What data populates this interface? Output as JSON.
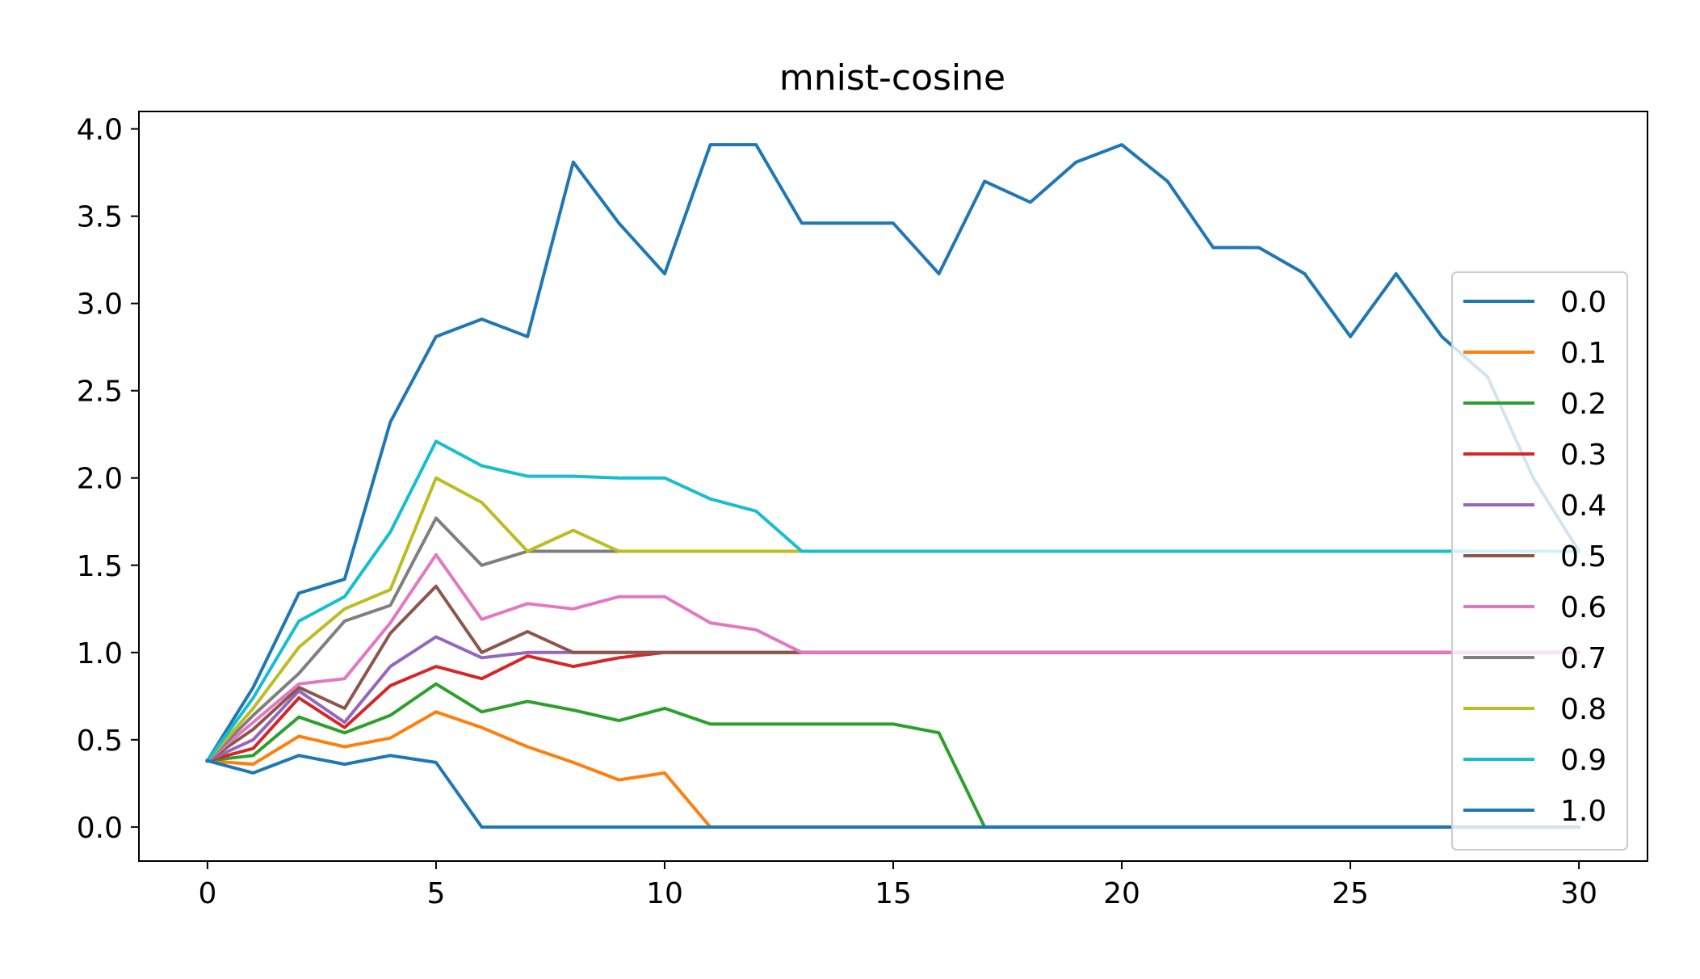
{
  "chart_data": {
    "type": "line",
    "title": "mnist-cosine",
    "xlabel": "",
    "ylabel": "",
    "xlim": [
      -1.5,
      31.5
    ],
    "ylim": [
      -0.195,
      4.1
    ],
    "xticks": [
      0,
      5,
      10,
      15,
      20,
      25,
      30
    ],
    "xtick_labels": [
      "0",
      "5",
      "10",
      "15",
      "20",
      "25",
      "30"
    ],
    "yticks": [
      0.0,
      0.5,
      1.0,
      1.5,
      2.0,
      2.5,
      3.0,
      3.5,
      4.0
    ],
    "ytick_labels": [
      "0.0",
      "0.5",
      "1.0",
      "1.5",
      "2.0",
      "2.5",
      "3.0",
      "3.5",
      "4.0"
    ],
    "grid": false,
    "legend_position": "right",
    "legend_title": "",
    "x": [
      0,
      1,
      2,
      3,
      4,
      5,
      6,
      7,
      8,
      9,
      10,
      11,
      12,
      13,
      14,
      15,
      16,
      17,
      18,
      19,
      20,
      21,
      22,
      23,
      24,
      25,
      26,
      27,
      28,
      29,
      30
    ],
    "series": [
      {
        "name": "0.0",
        "color": "#1f77b4",
        "values": [
          0.38,
          0.8,
          1.34,
          1.42,
          2.32,
          2.81,
          2.91,
          2.81,
          3.81,
          3.46,
          3.17,
          3.91,
          3.91,
          3.46,
          3.46,
          3.46,
          3.17,
          3.7,
          3.58,
          3.81,
          3.91,
          3.7,
          3.32,
          3.32,
          3.17,
          2.81,
          3.17,
          2.81,
          2.58,
          2.0,
          1.58
        ]
      },
      {
        "name": "0.1",
        "color": "#ff7f0e",
        "values": [
          0.38,
          0.36,
          0.52,
          0.46,
          0.51,
          0.66,
          0.57,
          0.46,
          0.37,
          0.27,
          0.31,
          0.0,
          0.0,
          0.0,
          0.0,
          0.0,
          0.0,
          0.0,
          0.0,
          0.0,
          0.0,
          0.0,
          0.0,
          0.0,
          0.0,
          0.0,
          0.0,
          0.0,
          0.0,
          0.0,
          0.0
        ]
      },
      {
        "name": "0.2",
        "color": "#2ca02c",
        "values": [
          0.38,
          0.41,
          0.63,
          0.54,
          0.64,
          0.82,
          0.66,
          0.72,
          0.67,
          0.61,
          0.68,
          0.59,
          0.59,
          0.59,
          0.59,
          0.59,
          0.54,
          0.0,
          0.0,
          0.0,
          0.0,
          0.0,
          0.0,
          0.0,
          0.0,
          0.0,
          0.0,
          0.0,
          0.0,
          0.0,
          0.0
        ]
      },
      {
        "name": "0.3",
        "color": "#d62728",
        "values": [
          0.38,
          0.45,
          0.74,
          0.57,
          0.81,
          0.92,
          0.85,
          0.98,
          0.92,
          0.97,
          1.0,
          1.0,
          1.0,
          1.0,
          1.0,
          1.0,
          1.0,
          1.0,
          1.0,
          1.0,
          1.0,
          1.0,
          1.0,
          1.0,
          1.0,
          1.0,
          1.0,
          1.0,
          1.0,
          1.0,
          1.0
        ]
      },
      {
        "name": "0.4",
        "color": "#9467bd",
        "values": [
          0.38,
          0.5,
          0.78,
          0.6,
          0.92,
          1.09,
          0.97,
          1.0,
          1.0,
          1.0,
          1.0,
          1.0,
          1.0,
          1.0,
          1.0,
          1.0,
          1.0,
          1.0,
          1.0,
          1.0,
          1.0,
          1.0,
          1.0,
          1.0,
          1.0,
          1.0,
          1.0,
          1.0,
          1.0,
          1.0,
          1.0
        ]
      },
      {
        "name": "0.5",
        "color": "#8c564b",
        "values": [
          0.38,
          0.56,
          0.8,
          0.68,
          1.11,
          1.38,
          1.0,
          1.12,
          1.0,
          1.0,
          1.0,
          1.0,
          1.0,
          1.0,
          1.0,
          1.0,
          1.0,
          1.0,
          1.0,
          1.0,
          1.0,
          1.0,
          1.0,
          1.0,
          1.0,
          1.0,
          1.0,
          1.0,
          1.0,
          1.0,
          1.0
        ]
      },
      {
        "name": "0.6",
        "color": "#e377c2",
        "values": [
          0.38,
          0.6,
          0.82,
          0.85,
          1.17,
          1.56,
          1.19,
          1.28,
          1.25,
          1.32,
          1.32,
          1.17,
          1.13,
          1.0,
          1.0,
          1.0,
          1.0,
          1.0,
          1.0,
          1.0,
          1.0,
          1.0,
          1.0,
          1.0,
          1.0,
          1.0,
          1.0,
          1.0,
          1.0,
          1.0,
          1.0
        ]
      },
      {
        "name": "0.7",
        "color": "#7f7f7f",
        "values": [
          0.38,
          0.64,
          0.88,
          1.18,
          1.27,
          1.77,
          1.5,
          1.58,
          1.58,
          1.58,
          1.58,
          1.58,
          1.58,
          1.58,
          1.58,
          1.58,
          1.58,
          1.58,
          1.58,
          1.58,
          1.58,
          1.58,
          1.58,
          1.58,
          1.58,
          1.58,
          1.58,
          1.58,
          1.58,
          1.58,
          1.58
        ]
      },
      {
        "name": "0.8",
        "color": "#bcbd22",
        "values": [
          0.38,
          0.68,
          1.03,
          1.25,
          1.36,
          2.0,
          1.86,
          1.58,
          1.7,
          1.58,
          1.58,
          1.58,
          1.58,
          1.58,
          1.58,
          1.58,
          1.58,
          1.58,
          1.58,
          1.58,
          1.58,
          1.58,
          1.58,
          1.58,
          1.58,
          1.58,
          1.58,
          1.58,
          1.58,
          1.58,
          1.58
        ]
      },
      {
        "name": "0.9",
        "color": "#17becf",
        "values": [
          0.38,
          0.74,
          1.18,
          1.32,
          1.69,
          2.21,
          2.07,
          2.01,
          2.01,
          2.0,
          2.0,
          1.88,
          1.81,
          1.58,
          1.58,
          1.58,
          1.58,
          1.58,
          1.58,
          1.58,
          1.58,
          1.58,
          1.58,
          1.58,
          1.58,
          1.58,
          1.58,
          1.58,
          1.58,
          1.58,
          1.58
        ]
      },
      {
        "name": "1.0",
        "color": "#1f77b4",
        "values": [
          0.38,
          0.31,
          0.41,
          0.36,
          0.41,
          0.37,
          0.0,
          0.0,
          0.0,
          0.0,
          0.0,
          0.0,
          0.0,
          0.0,
          0.0,
          0.0,
          0.0,
          0.0,
          0.0,
          0.0,
          0.0,
          0.0,
          0.0,
          0.0,
          0.0,
          0.0,
          0.0,
          0.0,
          0.0,
          0.0,
          0.0
        ]
      }
    ]
  }
}
